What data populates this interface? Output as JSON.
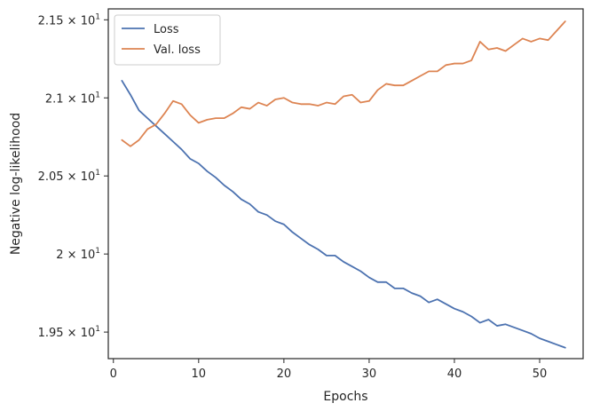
{
  "chart_data": {
    "type": "line",
    "xlabel": "Epochs",
    "ylabel": "Negative log-likelihood",
    "xlim": [
      -0.6,
      55.1
    ],
    "ylim": [
      19.33,
      21.57
    ],
    "xticks": [
      0,
      10,
      20,
      30,
      40,
      50
    ],
    "xtick_labels": [
      "0",
      "10",
      "20",
      "30",
      "40",
      "50"
    ],
    "yticks": [
      19.5,
      20.0,
      20.5,
      21.0,
      21.5
    ],
    "ytick_labels": [
      {
        "base": "1.95",
        "exp": "1"
      },
      {
        "base": "2",
        "exp": "1"
      },
      {
        "base": "2.05",
        "exp": "1"
      },
      {
        "base": "2.1",
        "exp": "1"
      },
      {
        "base": "2.15",
        "exp": "1"
      }
    ],
    "ytick_sep": " × 10",
    "grid": false,
    "legend_position": "upper-left",
    "x": [
      1,
      2,
      3,
      4,
      5,
      6,
      7,
      8,
      9,
      10,
      11,
      12,
      13,
      14,
      15,
      16,
      17,
      18,
      19,
      20,
      21,
      22,
      23,
      24,
      25,
      26,
      27,
      28,
      29,
      30,
      31,
      32,
      33,
      34,
      35,
      36,
      37,
      38,
      39,
      40,
      41,
      42,
      43,
      44,
      45,
      46,
      47,
      48,
      49,
      50,
      51,
      52,
      53
    ],
    "series": [
      {
        "name": "Loss",
        "color": "#4c72b0",
        "values": [
          21.11,
          21.02,
          20.92,
          20.87,
          20.82,
          20.77,
          20.72,
          20.67,
          20.61,
          20.58,
          20.53,
          20.49,
          20.44,
          20.4,
          20.35,
          20.32,
          20.27,
          20.25,
          20.21,
          20.19,
          20.14,
          20.1,
          20.06,
          20.03,
          19.99,
          19.99,
          19.95,
          19.92,
          19.89,
          19.85,
          19.82,
          19.82,
          19.78,
          19.78,
          19.75,
          19.73,
          19.69,
          19.71,
          19.68,
          19.65,
          19.63,
          19.6,
          19.56,
          19.58,
          19.54,
          19.55,
          19.53,
          19.51,
          19.49,
          19.46,
          19.44,
          19.42,
          19.4
        ]
      },
      {
        "name": "Val. loss",
        "color": "#dd8452",
        "values": [
          20.73,
          20.69,
          20.73,
          20.8,
          20.83,
          20.9,
          20.98,
          20.96,
          20.89,
          20.84,
          20.86,
          20.87,
          20.87,
          20.9,
          20.94,
          20.93,
          20.97,
          20.95,
          20.99,
          21.0,
          20.97,
          20.96,
          20.96,
          20.95,
          20.97,
          20.96,
          21.01,
          21.02,
          20.97,
          20.98,
          21.05,
          21.09,
          21.08,
          21.08,
          21.11,
          21.14,
          21.17,
          21.17,
          21.21,
          21.22,
          21.22,
          21.24,
          21.36,
          21.31,
          21.32,
          21.3,
          21.34,
          21.38,
          21.36,
          21.38,
          21.37,
          21.43,
          21.49
        ]
      }
    ]
  }
}
